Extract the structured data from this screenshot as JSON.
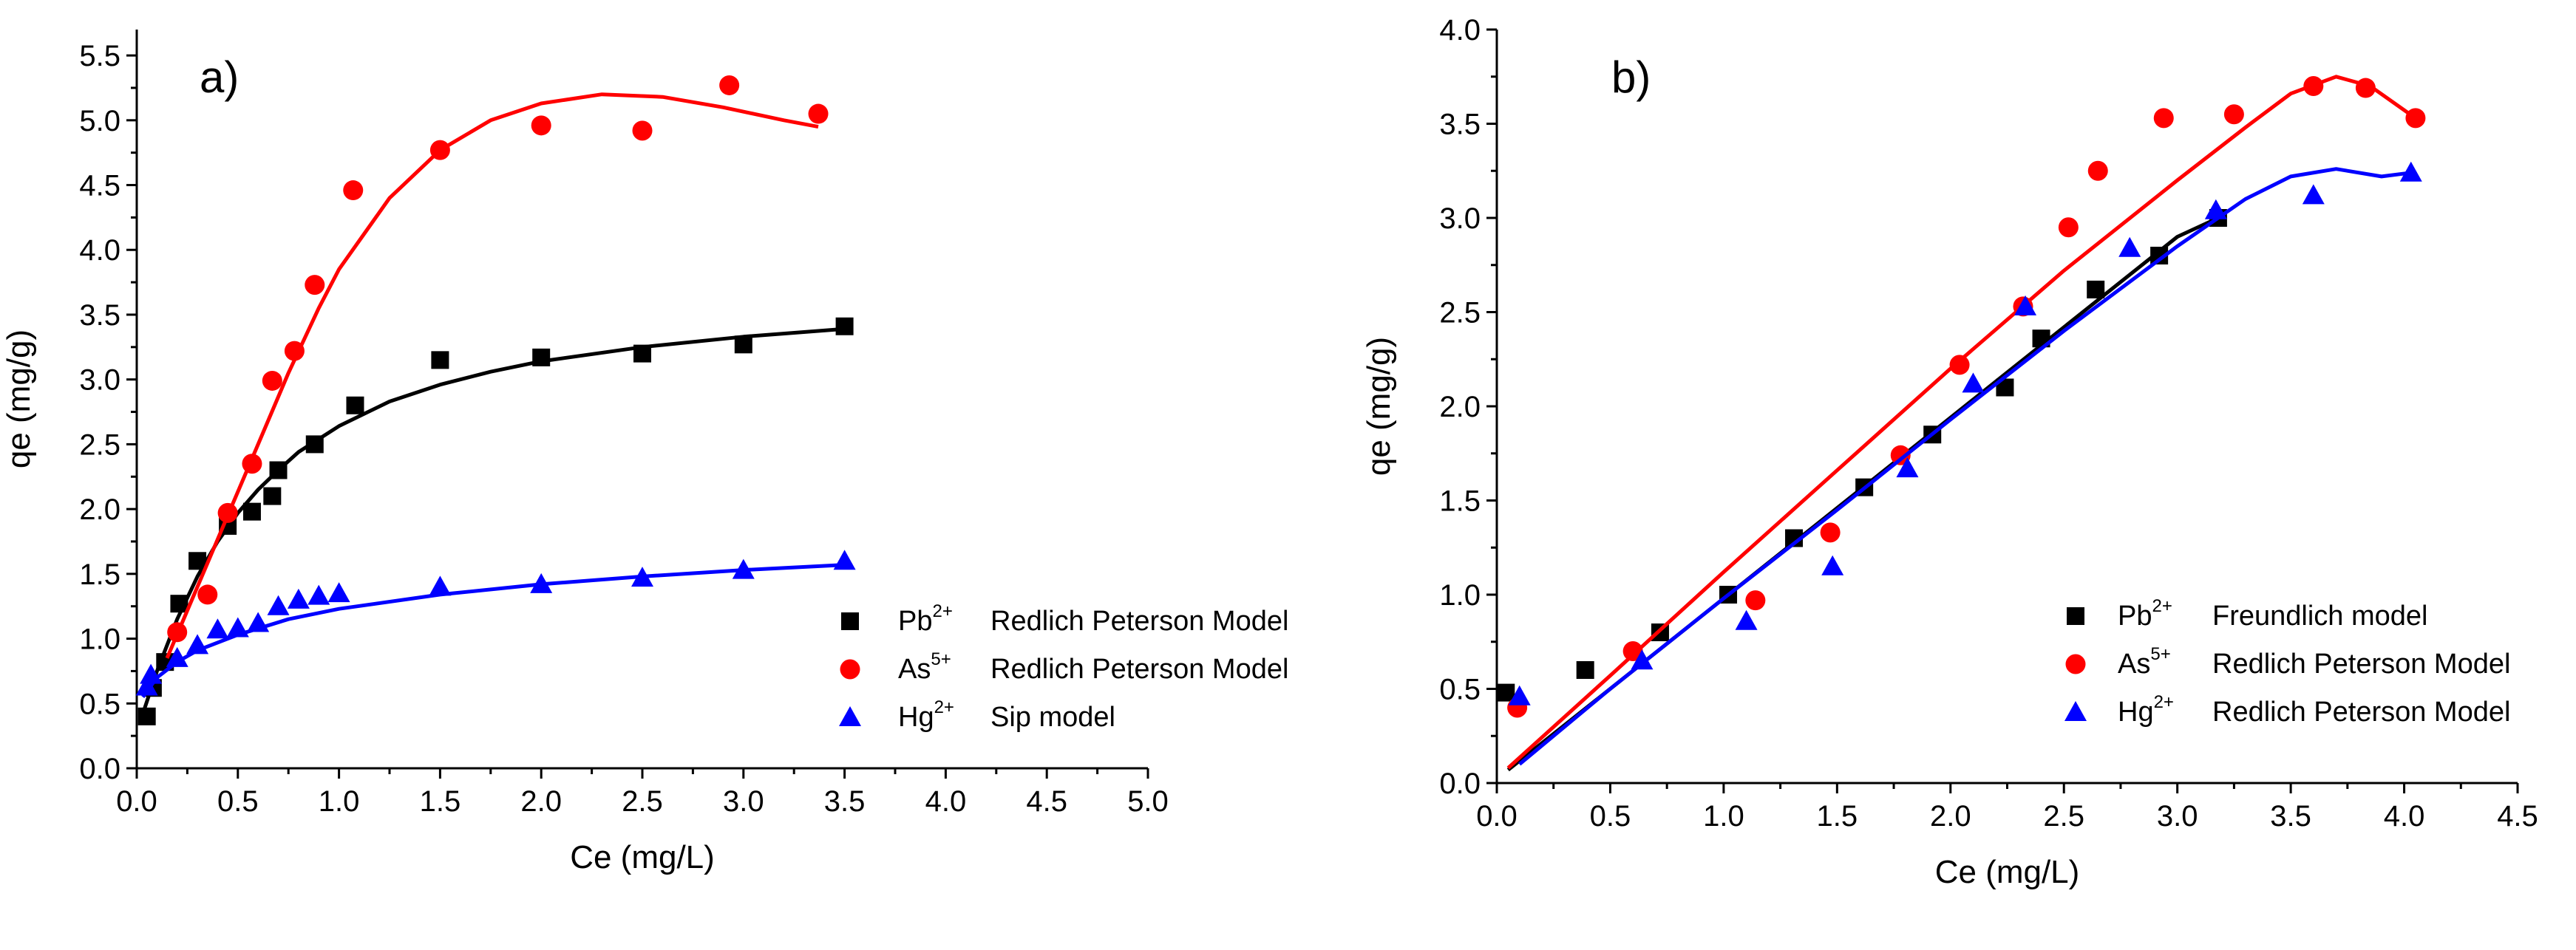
{
  "chart_data": [
    {
      "id": "a",
      "type": "scatter",
      "panel_label": "a)",
      "xlabel": "Ce (mg/L)",
      "ylabel": "qe (mg/g)",
      "xlim": [
        0,
        5
      ],
      "ylim": [
        0,
        5.7
      ],
      "xticks": [
        "0.0",
        "0.5",
        "1.0",
        "1.5",
        "2.0",
        "2.5",
        "3.0",
        "3.5",
        "4.0",
        "4.5",
        "5.0"
      ],
      "xtick_values": [
        0,
        0.5,
        1,
        1.5,
        2,
        2.5,
        3,
        3.5,
        4,
        4.5,
        5
      ],
      "yticks": [
        "0.0",
        "0.5",
        "1.0",
        "1.5",
        "2.0",
        "2.5",
        "3.0",
        "3.5",
        "4.0",
        "4.5",
        "5.0",
        "5.5"
      ],
      "ytick_values": [
        0,
        0.5,
        1,
        1.5,
        2,
        2.5,
        3,
        3.5,
        4,
        4.5,
        5,
        5.5
      ],
      "legend_position": "bottom-right",
      "series": [
        {
          "ion": "Pb",
          "charge": "2+",
          "model": "Redlich Peterson Model",
          "marker": "square",
          "color": "#000000",
          "points": [
            [
              0.05,
              0.4
            ],
            [
              0.08,
              0.62
            ],
            [
              0.14,
              0.82
            ],
            [
              0.21,
              1.27
            ],
            [
              0.3,
              1.6
            ],
            [
              0.45,
              1.87
            ],
            [
              0.57,
              1.98
            ],
            [
              0.67,
              2.1
            ],
            [
              0.7,
              2.3
            ],
            [
              0.88,
              2.5
            ],
            [
              1.08,
              2.8
            ],
            [
              1.5,
              3.15
            ],
            [
              2.0,
              3.17
            ],
            [
              2.5,
              3.2
            ],
            [
              3.0,
              3.27
            ],
            [
              3.5,
              3.41
            ]
          ],
          "curve": [
            [
              0.03,
              0.42
            ],
            [
              0.1,
              0.75
            ],
            [
              0.2,
              1.15
            ],
            [
              0.3,
              1.48
            ],
            [
              0.4,
              1.75
            ],
            [
              0.5,
              1.97
            ],
            [
              0.6,
              2.15
            ],
            [
              0.7,
              2.3
            ],
            [
              0.8,
              2.44
            ],
            [
              1.0,
              2.64
            ],
            [
              1.25,
              2.83
            ],
            [
              1.5,
              2.96
            ],
            [
              1.75,
              3.06
            ],
            [
              2.0,
              3.14
            ],
            [
              2.5,
              3.25
            ],
            [
              3.0,
              3.33
            ],
            [
              3.5,
              3.39
            ]
          ]
        },
        {
          "ion": "As",
          "charge": "5+",
          "model": "Redlich Peterson Model",
          "marker": "circle",
          "color": "#ff0000",
          "points": [
            [
              0.2,
              1.05
            ],
            [
              0.35,
              1.34
            ],
            [
              0.45,
              1.97
            ],
            [
              0.57,
              2.35
            ],
            [
              0.67,
              2.99
            ],
            [
              0.78,
              3.22
            ],
            [
              0.88,
              3.73
            ],
            [
              1.07,
              4.46
            ],
            [
              1.5,
              4.77
            ],
            [
              2.0,
              4.96
            ],
            [
              2.5,
              4.92
            ],
            [
              2.93,
              5.27
            ],
            [
              3.37,
              5.05
            ]
          ],
          "curve": [
            [
              0.15,
              0.85
            ],
            [
              0.3,
              1.4
            ],
            [
              0.45,
              1.95
            ],
            [
              0.6,
              2.5
            ],
            [
              0.75,
              3.05
            ],
            [
              0.9,
              3.55
            ],
            [
              1.0,
              3.85
            ],
            [
              1.25,
              4.4
            ],
            [
              1.5,
              4.77
            ],
            [
              1.75,
              5.0
            ],
            [
              2.0,
              5.13
            ],
            [
              2.3,
              5.2
            ],
            [
              2.6,
              5.18
            ],
            [
              2.9,
              5.1
            ],
            [
              3.2,
              5.0
            ],
            [
              3.37,
              4.95
            ]
          ]
        },
        {
          "ion": "Hg",
          "charge": "2+",
          "model": "Sip model",
          "marker": "triangle",
          "color": "#0000ff",
          "points": [
            [
              0.05,
              0.63
            ],
            [
              0.07,
              0.72
            ],
            [
              0.2,
              0.85
            ],
            [
              0.3,
              0.95
            ],
            [
              0.4,
              1.07
            ],
            [
              0.5,
              1.08
            ],
            [
              0.6,
              1.12
            ],
            [
              0.7,
              1.25
            ],
            [
              0.8,
              1.3
            ],
            [
              0.9,
              1.33
            ],
            [
              1.0,
              1.35
            ],
            [
              1.5,
              1.4
            ],
            [
              2.0,
              1.42
            ],
            [
              2.5,
              1.47
            ],
            [
              3.0,
              1.53
            ],
            [
              3.5,
              1.6
            ]
          ],
          "curve": [
            [
              0.03,
              0.55
            ],
            [
              0.1,
              0.7
            ],
            [
              0.2,
              0.82
            ],
            [
              0.3,
              0.91
            ],
            [
              0.5,
              1.03
            ],
            [
              0.75,
              1.15
            ],
            [
              1.0,
              1.23
            ],
            [
              1.5,
              1.34
            ],
            [
              2.0,
              1.42
            ],
            [
              2.5,
              1.48
            ],
            [
              3.0,
              1.53
            ],
            [
              3.5,
              1.57
            ]
          ]
        }
      ]
    },
    {
      "id": "b",
      "type": "scatter",
      "panel_label": "b)",
      "xlabel": "Ce (mg/L)",
      "ylabel": "qe (mg/g)",
      "xlim": [
        0,
        4.5
      ],
      "ylim": [
        0,
        4.0
      ],
      "xticks": [
        "0.0",
        "0.5",
        "1.0",
        "1.5",
        "2.0",
        "2.5",
        "3.0",
        "3.5",
        "4.0",
        "4.5"
      ],
      "xtick_values": [
        0,
        0.5,
        1,
        1.5,
        2,
        2.5,
        3,
        3.5,
        4,
        4.5
      ],
      "yticks": [
        "0.0",
        "0.5",
        "1.0",
        "1.5",
        "2.0",
        "2.5",
        "3.0",
        "3.5",
        "4.0"
      ],
      "ytick_values": [
        0,
        0.5,
        1,
        1.5,
        2,
        2.5,
        3,
        3.5,
        4
      ],
      "legend_position": "bottom-right",
      "series": [
        {
          "ion": "Pb",
          "charge": "2+",
          "model": "Freundlich model",
          "marker": "square",
          "color": "#000000",
          "points": [
            [
              0.04,
              0.48
            ],
            [
              0.39,
              0.6
            ],
            [
              0.72,
              0.8
            ],
            [
              1.02,
              1.0
            ],
            [
              1.31,
              1.3
            ],
            [
              1.62,
              1.57
            ],
            [
              1.92,
              1.85
            ],
            [
              2.24,
              2.1
            ],
            [
              2.4,
              2.36
            ],
            [
              2.64,
              2.62
            ],
            [
              2.92,
              2.8
            ],
            [
              3.18,
              3.0
            ]
          ],
          "curve": [
            [
              0.05,
              0.07
            ],
            [
              0.5,
              0.5
            ],
            [
              1.0,
              0.98
            ],
            [
              1.5,
              1.46
            ],
            [
              2.0,
              1.94
            ],
            [
              2.5,
              2.42
            ],
            [
              3.0,
              2.9
            ],
            [
              3.18,
              3.0
            ]
          ]
        },
        {
          "ion": "As",
          "charge": "5+",
          "model": "Redlich Peterson Model",
          "marker": "circle",
          "color": "#ff0000",
          "points": [
            [
              0.09,
              0.4
            ],
            [
              0.6,
              0.7
            ],
            [
              1.14,
              0.97
            ],
            [
              1.47,
              1.33
            ],
            [
              1.78,
              1.74
            ],
            [
              2.04,
              2.22
            ],
            [
              2.32,
              2.53
            ],
            [
              2.52,
              2.95
            ],
            [
              2.65,
              3.25
            ],
            [
              2.94,
              3.53
            ],
            [
              3.25,
              3.55
            ],
            [
              3.6,
              3.7
            ],
            [
              3.83,
              3.69
            ],
            [
              4.05,
              3.53
            ]
          ],
          "curve": [
            [
              0.05,
              0.08
            ],
            [
              0.5,
              0.57
            ],
            [
              1.0,
              1.12
            ],
            [
              1.5,
              1.66
            ],
            [
              2.0,
              2.2
            ],
            [
              2.5,
              2.72
            ],
            [
              3.0,
              3.2
            ],
            [
              3.3,
              3.48
            ],
            [
              3.5,
              3.66
            ],
            [
              3.7,
              3.75
            ],
            [
              3.85,
              3.7
            ],
            [
              4.05,
              3.53
            ]
          ]
        },
        {
          "ion": "Hg",
          "charge": "2+",
          "model": "Redlich Peterson Model",
          "marker": "triangle",
          "color": "#0000ff",
          "points": [
            [
              0.1,
              0.46
            ],
            [
              0.64,
              0.65
            ],
            [
              1.1,
              0.86
            ],
            [
              1.48,
              1.15
            ],
            [
              1.81,
              1.67
            ],
            [
              2.1,
              2.12
            ],
            [
              2.33,
              2.53
            ],
            [
              2.79,
              2.84
            ],
            [
              3.17,
              3.04
            ],
            [
              3.6,
              3.12
            ],
            [
              4.03,
              3.24
            ]
          ],
          "curve": [
            [
              0.1,
              0.1
            ],
            [
              0.5,
              0.5
            ],
            [
              1.0,
              0.98
            ],
            [
              1.5,
              1.45
            ],
            [
              2.0,
              1.93
            ],
            [
              2.5,
              2.4
            ],
            [
              3.0,
              2.85
            ],
            [
              3.3,
              3.1
            ],
            [
              3.5,
              3.22
            ],
            [
              3.7,
              3.26
            ],
            [
              3.9,
              3.22
            ],
            [
              4.03,
              3.24
            ]
          ]
        }
      ]
    }
  ]
}
